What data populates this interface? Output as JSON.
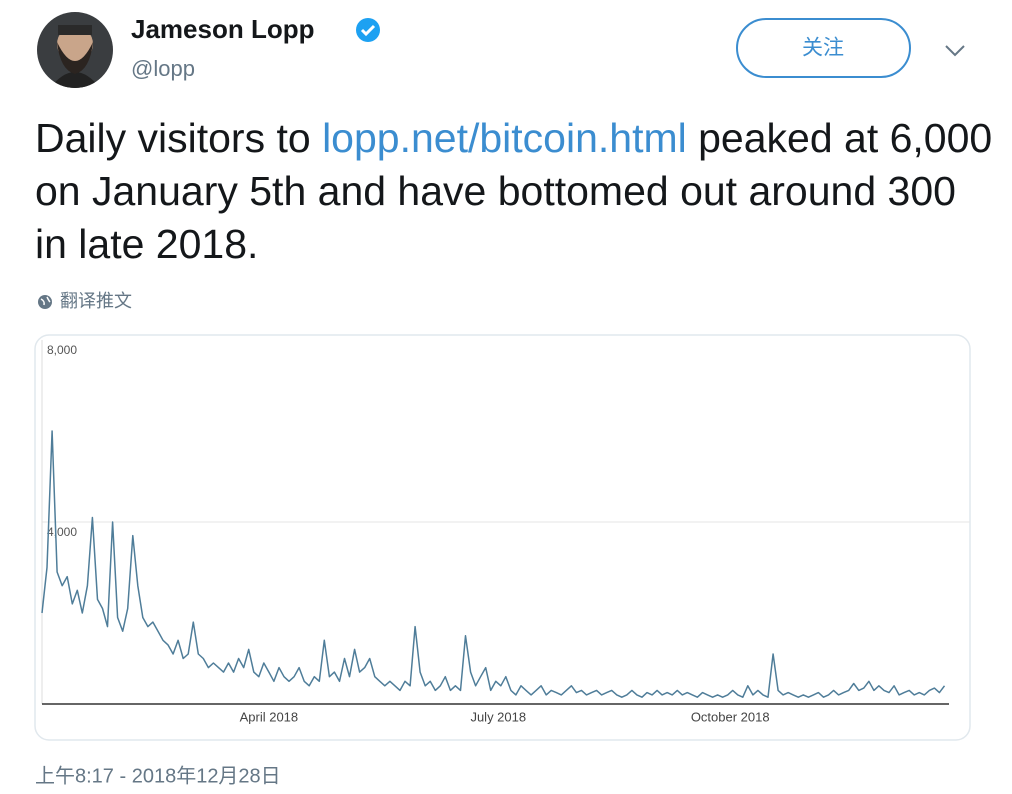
{
  "user": {
    "name": "Jameson Lopp",
    "handle": "@lopp"
  },
  "follow_button": "关注",
  "tweet": {
    "text_before": "Daily visitors to ",
    "link": "lopp.net/bitcoin.html",
    "text_after": " peaked at 6,000 on January 5th and have bottomed out around 300 in late 2018."
  },
  "translate": "翻译推文",
  "timestamp": "上午8:17 - 2018年12月28日",
  "chart_data": {
    "type": "line",
    "color": "#4f7d99",
    "x": [
      0,
      2,
      4,
      6,
      8,
      10,
      12,
      14,
      16,
      18,
      20,
      22,
      24,
      26,
      28,
      30,
      32,
      34,
      36,
      38,
      40,
      42,
      44,
      46,
      48,
      50,
      52,
      54,
      56,
      58,
      60,
      62,
      64,
      66,
      68,
      70,
      72,
      74,
      76,
      78,
      80,
      82,
      84,
      86,
      88,
      90,
      92,
      94,
      96,
      98,
      100,
      102,
      104,
      106,
      108,
      110,
      112,
      114,
      116,
      118,
      120,
      122,
      124,
      126,
      128,
      130,
      132,
      134,
      136,
      138,
      140,
      142,
      144,
      146,
      148,
      150,
      152,
      154,
      156,
      158,
      160,
      162,
      164,
      166,
      168,
      170,
      172,
      174,
      176,
      178,
      180,
      182,
      184,
      186,
      188,
      190,
      192,
      194,
      196,
      198,
      200,
      202,
      204,
      206,
      208,
      210,
      212,
      214,
      216,
      218,
      220,
      222,
      224,
      226,
      228,
      230,
      232,
      234,
      236,
      238,
      240,
      242,
      244,
      246,
      248,
      250,
      252,
      254,
      256,
      258,
      260,
      262,
      264,
      266,
      268,
      270,
      272,
      274,
      276,
      278,
      280,
      282,
      284,
      286,
      288,
      290,
      292,
      294,
      296,
      298,
      300,
      302,
      304,
      306,
      308,
      310,
      312,
      314,
      316,
      318,
      320,
      322,
      324,
      326,
      328,
      330,
      332,
      334,
      336,
      338,
      340,
      342,
      344,
      346,
      348,
      350,
      352,
      354,
      356,
      358
    ],
    "values": [
      2000,
      3000,
      6000,
      2900,
      2600,
      2800,
      2200,
      2500,
      2000,
      2600,
      4100,
      2300,
      2100,
      1700,
      4000,
      1900,
      1600,
      2100,
      3700,
      2600,
      1900,
      1700,
      1800,
      1600,
      1400,
      1300,
      1100,
      1400,
      1000,
      1100,
      1800,
      1100,
      1000,
      800,
      900,
      800,
      700,
      900,
      700,
      1000,
      800,
      1200,
      700,
      600,
      900,
      700,
      500,
      800,
      600,
      500,
      600,
      800,
      500,
      400,
      600,
      500,
      1400,
      600,
      700,
      500,
      1000,
      600,
      1200,
      700,
      800,
      1000,
      600,
      500,
      400,
      500,
      400,
      300,
      500,
      400,
      1700,
      700,
      400,
      500,
      300,
      400,
      600,
      300,
      400,
      300,
      1500,
      700,
      400,
      600,
      800,
      300,
      500,
      400,
      600,
      300,
      200,
      400,
      300,
      200,
      300,
      400,
      200,
      300,
      250,
      200,
      300,
      400,
      250,
      300,
      200,
      250,
      300,
      200,
      250,
      300,
      200,
      150,
      200,
      300,
      200,
      150,
      250,
      200,
      300,
      200,
      250,
      200,
      300,
      200,
      250,
      200,
      150,
      250,
      200,
      150,
      200,
      150,
      200,
      300,
      200,
      150,
      400,
      200,
      300,
      200,
      150,
      1100,
      300,
      200,
      250,
      200,
      150,
      200,
      150,
      200,
      250,
      150,
      200,
      300,
      200,
      250,
      300,
      450,
      300,
      350,
      500,
      300,
      400,
      300,
      250,
      400,
      200,
      250,
      300,
      200,
      250,
      200,
      300,
      350,
      250,
      400
    ],
    "xlim": [
      0,
      359
    ],
    "xticks": [
      {
        "value": 90,
        "label": "April 2018"
      },
      {
        "value": 181,
        "label": "July 2018"
      },
      {
        "value": 273,
        "label": "October 2018"
      }
    ],
    "ylim": [
      0,
      8000
    ],
    "yticks": [
      {
        "value": 4000,
        "label": "4,000"
      },
      {
        "value": 8000,
        "label": "8,000"
      }
    ],
    "grid": true
  }
}
